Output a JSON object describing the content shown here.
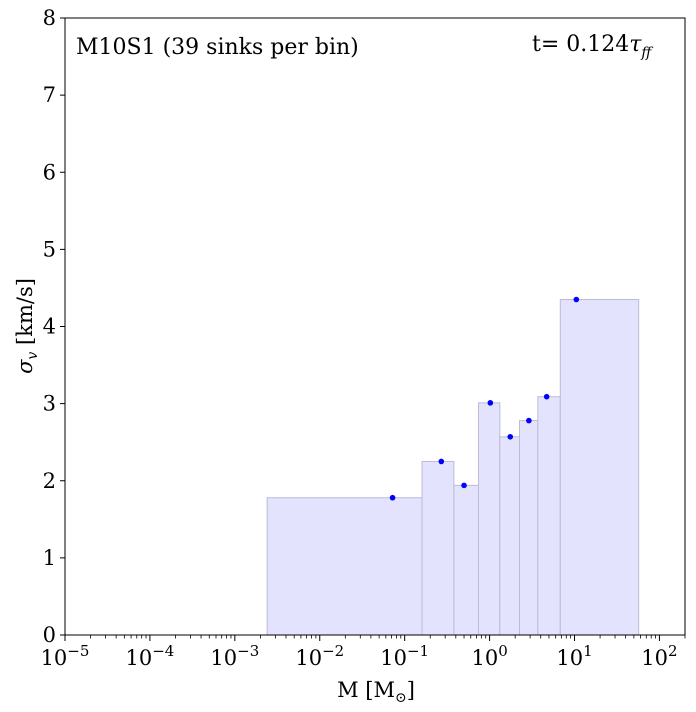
{
  "chart_data": {
    "type": "bar",
    "title_left": "M10S1 (39 sinks per bin)",
    "title_right": "t= 0.124",
    "title_right_symbol": "τ",
    "title_right_sub": "ff",
    "xlabel": "M [M",
    "xlabel_sub": "⊙",
    "xlabel_close": "]",
    "ylabel": "σ",
    "ylabel_sub": "v",
    "ylabel_units": " [km/s]",
    "xscale": "log",
    "xlim": [
      1e-05,
      200
    ],
    "ylim": [
      0,
      8
    ],
    "xticks": [
      {
        "value": 1e-05,
        "base": "10",
        "exp": "−5"
      },
      {
        "value": 0.0001,
        "base": "10",
        "exp": "−4"
      },
      {
        "value": 0.001,
        "base": "10",
        "exp": "−3"
      },
      {
        "value": 0.01,
        "base": "10",
        "exp": "−2"
      },
      {
        "value": 0.1,
        "base": "10",
        "exp": "−1"
      },
      {
        "value": 1,
        "base": "10",
        "exp": "0"
      },
      {
        "value": 10,
        "base": "10",
        "exp": "1"
      },
      {
        "value": 100,
        "base": "10",
        "exp": "2"
      }
    ],
    "yticks": [
      0,
      1,
      2,
      3,
      4,
      5,
      6,
      7,
      8
    ],
    "bins": [
      {
        "x0": 0.0024,
        "x1": 0.16,
        "value": 1.78,
        "point_x": 0.072
      },
      {
        "x0": 0.16,
        "x1": 0.38,
        "value": 2.25,
        "point_x": 0.27
      },
      {
        "x0": 0.38,
        "x1": 0.74,
        "value": 1.94,
        "point_x": 0.5
      },
      {
        "x0": 0.74,
        "x1": 1.32,
        "value": 3.01,
        "point_x": 1.02
      },
      {
        "x0": 1.32,
        "x1": 2.25,
        "value": 2.57,
        "point_x": 1.75
      },
      {
        "x0": 2.25,
        "x1": 3.7,
        "value": 2.78,
        "point_x": 2.9
      },
      {
        "x0": 3.7,
        "x1": 6.8,
        "value": 3.09,
        "point_x": 4.7
      },
      {
        "x0": 6.8,
        "x1": 57,
        "value": 4.35,
        "point_x": 10.5
      }
    ],
    "colors": {
      "fill": "#e3e3fd",
      "edge": "#bcbcd6",
      "point": "#0000ff"
    }
  }
}
